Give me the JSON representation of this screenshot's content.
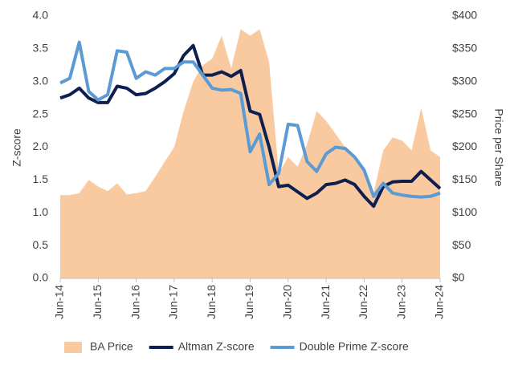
{
  "chart_data": {
    "type": "line",
    "categories": [
      "Jun-14",
      null,
      null,
      null,
      "Jun-15",
      null,
      null,
      null,
      "Jun-16",
      null,
      null,
      null,
      "Jun-17",
      null,
      null,
      null,
      "Jun-18",
      null,
      null,
      null,
      "Jun-19",
      null,
      null,
      null,
      "Jun-20",
      null,
      null,
      null,
      "Jun-21",
      null,
      null,
      null,
      "Jun-22",
      null,
      null,
      null,
      "Jun-23",
      null,
      null,
      null,
      "Jun-24"
    ],
    "series": [
      {
        "name": "BA Price",
        "color": "#f9c9a0",
        "style": "area",
        "axis": "y2",
        "values": [
          127,
          127,
          130,
          150,
          140,
          133,
          145,
          128,
          130,
          133,
          155,
          178,
          200,
          255,
          300,
          325,
          335,
          370,
          320,
          380,
          370,
          380,
          330,
          160,
          185,
          170,
          205,
          255,
          240,
          220,
          200,
          185,
          165,
          130,
          195,
          215,
          210,
          195,
          260,
          195,
          185
        ]
      },
      {
        "name": "Altman Z-score",
        "color": "#0d1f4e",
        "style": "line",
        "values": [
          2.75,
          2.8,
          2.9,
          2.75,
          2.68,
          2.68,
          2.93,
          2.9,
          2.8,
          2.82,
          2.9,
          3.0,
          3.12,
          3.4,
          3.55,
          3.1,
          3.1,
          3.15,
          3.08,
          3.17,
          2.55,
          2.5,
          2.0,
          1.4,
          1.42,
          1.32,
          1.22,
          1.3,
          1.43,
          1.45,
          1.5,
          1.43,
          1.25,
          1.1,
          1.4,
          1.47,
          1.48,
          1.48,
          1.63,
          1.5,
          1.37
        ]
      },
      {
        "name": "Double Prime Z-score",
        "color": "#5b9bd5",
        "style": "line",
        "values": [
          2.98,
          3.05,
          3.6,
          2.85,
          2.72,
          2.8,
          3.47,
          3.45,
          3.05,
          3.15,
          3.1,
          3.2,
          3.2,
          3.3,
          3.3,
          3.1,
          2.9,
          2.87,
          2.88,
          2.82,
          1.93,
          2.2,
          1.43,
          1.6,
          2.35,
          2.33,
          1.78,
          1.63,
          1.9,
          2.0,
          1.98,
          1.85,
          1.65,
          1.25,
          1.45,
          1.3,
          1.27,
          1.25,
          1.24,
          1.25,
          1.3
        ]
      }
    ],
    "ylabel": "Z-score",
    "y2label": "Price per Share",
    "ylim": [
      0,
      4
    ],
    "yticks": [
      {
        "value": 0,
        "label": "0.0"
      },
      {
        "value": 0.5,
        "label": "0.5"
      },
      {
        "value": 1,
        "label": "1.0"
      },
      {
        "value": 1.5,
        "label": "1.5"
      },
      {
        "value": 2,
        "label": "2.0"
      },
      {
        "value": 2.5,
        "label": "2.5"
      },
      {
        "value": 3,
        "label": "3.0"
      },
      {
        "value": 3.5,
        "label": "3.5"
      },
      {
        "value": 4,
        "label": "4.0"
      }
    ],
    "y2lim": [
      0,
      400
    ],
    "y2ticks": [
      {
        "value": 0,
        "label": "$0"
      },
      {
        "value": 50,
        "label": "$50"
      },
      {
        "value": 100,
        "label": "$100"
      },
      {
        "value": 150,
        "label": "$150"
      },
      {
        "value": 200,
        "label": "$200"
      },
      {
        "value": 250,
        "label": "$250"
      },
      {
        "value": 300,
        "label": "$300"
      },
      {
        "value": 350,
        "label": "$350"
      },
      {
        "value": 400,
        "label": "$400"
      }
    ],
    "legend": "bottom"
  }
}
